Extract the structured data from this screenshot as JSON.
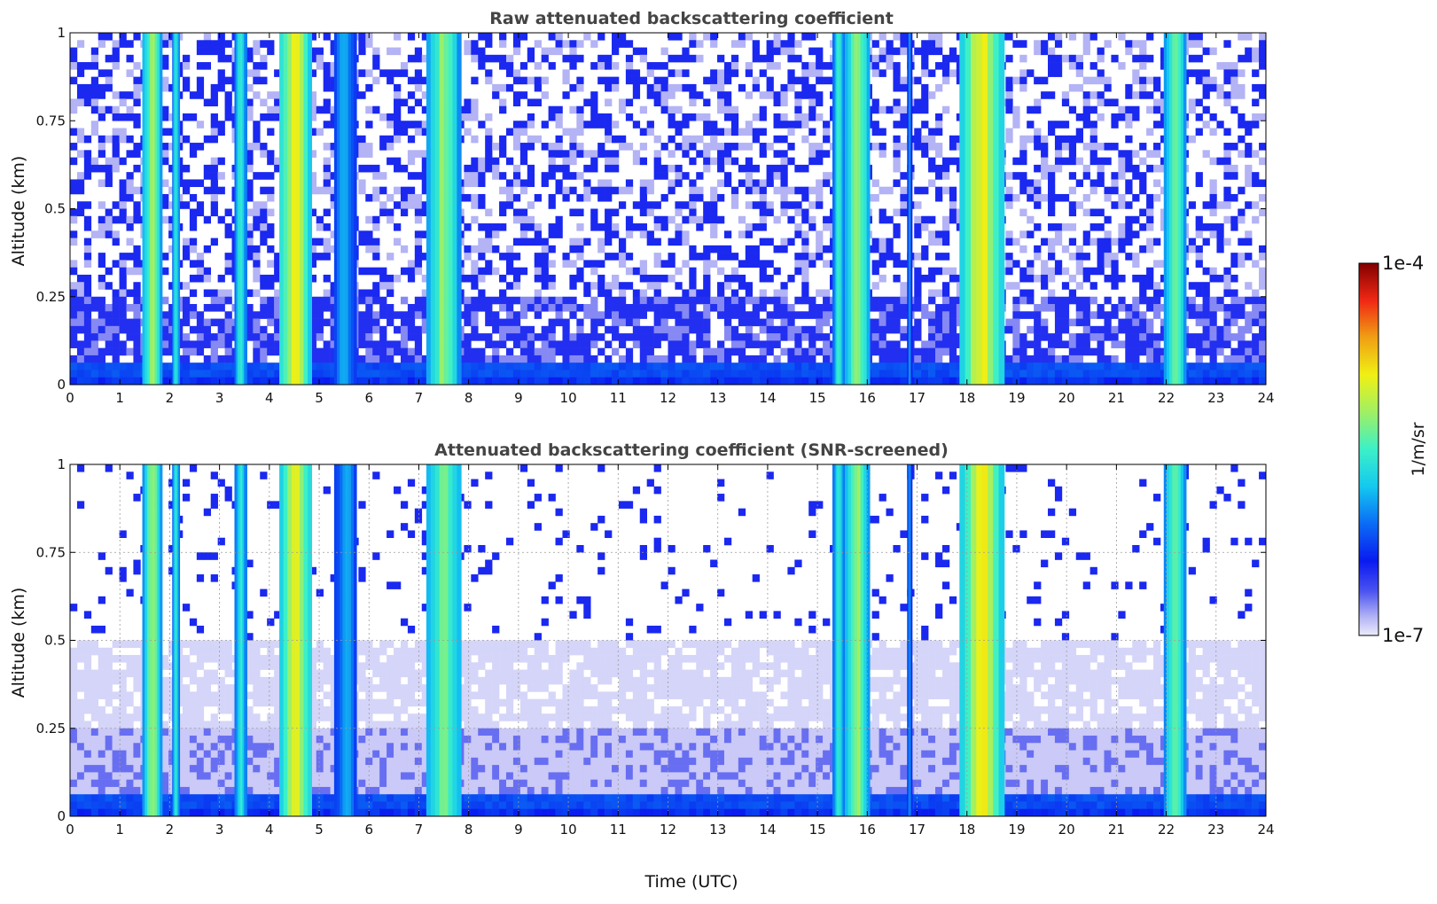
{
  "chart_data": [
    {
      "type": "heatmap",
      "title": "Raw attenuated backscattering coefficient",
      "xlabel": "",
      "ylabel": "Altitude (km)",
      "xlim": [
        0,
        24
      ],
      "ylim": [
        0,
        1
      ],
      "x_ticks": [
        "0",
        "1",
        "2",
        "3",
        "4",
        "5",
        "6",
        "7",
        "8",
        "9",
        "10",
        "11",
        "12",
        "13",
        "14",
        "15",
        "16",
        "17",
        "18",
        "19",
        "20",
        "21",
        "22",
        "23",
        "24"
      ],
      "y_ticks": [
        "0",
        "0.25",
        "0.5",
        "0.75",
        "1"
      ],
      "grid": false,
      "color_scale": "log",
      "vmin": "1e-7",
      "vmax": "1e-4",
      "units": "1/m/sr",
      "cloud_columns": [
        {
          "start": 1.45,
          "end": 1.85,
          "level": 0.62
        },
        {
          "start": 2.05,
          "end": 2.2,
          "level": 0.5
        },
        {
          "start": 3.3,
          "end": 3.55,
          "level": 0.5
        },
        {
          "start": 4.2,
          "end": 4.85,
          "level": 0.72
        },
        {
          "start": 5.3,
          "end": 5.75,
          "level": 0.4
        },
        {
          "start": 7.15,
          "end": 7.85,
          "level": 0.6
        },
        {
          "start": 15.3,
          "end": 15.55,
          "level": 0.5
        },
        {
          "start": 15.55,
          "end": 16.05,
          "level": 0.62
        },
        {
          "start": 16.8,
          "end": 16.9,
          "level": 0.35
        },
        {
          "start": 17.85,
          "end": 18.75,
          "level": 0.72
        },
        {
          "start": 21.95,
          "end": 22.4,
          "level": 0.58
        }
      ]
    },
    {
      "type": "heatmap",
      "title": "Attenuated backscattering coefficient (SNR-screened)",
      "xlabel": "Time (UTC)",
      "ylabel": "Altitude (km)",
      "xlim": [
        0,
        24
      ],
      "ylim": [
        0,
        1
      ],
      "x_ticks": [
        "0",
        "1",
        "2",
        "3",
        "4",
        "5",
        "6",
        "7",
        "8",
        "9",
        "10",
        "11",
        "12",
        "13",
        "14",
        "15",
        "16",
        "17",
        "18",
        "19",
        "20",
        "21",
        "22",
        "23",
        "24"
      ],
      "y_ticks": [
        "0",
        "0.25",
        "0.5",
        "0.75",
        "1"
      ],
      "grid": true,
      "color_scale": "log",
      "vmin": "1e-7",
      "vmax": "1e-4",
      "units": "1/m/sr",
      "cloud_columns": [
        {
          "start": 1.45,
          "end": 1.85,
          "level": 0.62
        },
        {
          "start": 2.05,
          "end": 2.2,
          "level": 0.5
        },
        {
          "start": 3.3,
          "end": 3.55,
          "level": 0.5
        },
        {
          "start": 4.2,
          "end": 4.85,
          "level": 0.72
        },
        {
          "start": 5.3,
          "end": 5.75,
          "level": 0.4
        },
        {
          "start": 7.15,
          "end": 7.85,
          "level": 0.6
        },
        {
          "start": 15.3,
          "end": 15.55,
          "level": 0.5
        },
        {
          "start": 15.55,
          "end": 16.05,
          "level": 0.62
        },
        {
          "start": 16.8,
          "end": 16.9,
          "level": 0.35
        },
        {
          "start": 17.85,
          "end": 18.75,
          "level": 0.72
        },
        {
          "start": 21.95,
          "end": 22.4,
          "level": 0.58
        }
      ]
    }
  ],
  "colorbar": {
    "label": "1/m/sr",
    "max_label": "1e-4",
    "min_label": "1e-7"
  }
}
